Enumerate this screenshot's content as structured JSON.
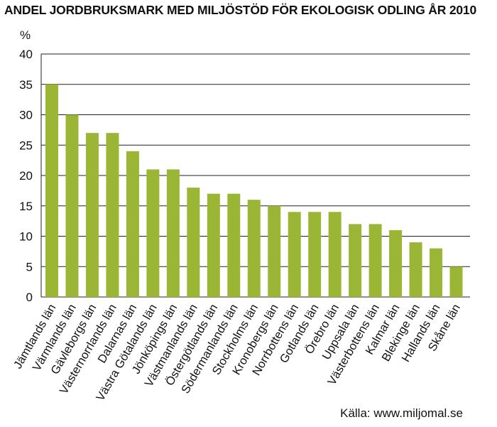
{
  "chart_data": {
    "type": "bar",
    "title": "ANDEL JORDBRUKSMARK MED MILJÖSTÖD FÖR EKOLOGISK ODLING ÅR 2010",
    "ylabel": "%",
    "xlabel": "",
    "ylim": [
      0,
      40
    ],
    "yticks": [
      "0",
      "5",
      "10",
      "15",
      "20",
      "25",
      "30",
      "35",
      "40"
    ],
    "grid": true,
    "bar_color": "#9bb634",
    "categories": [
      "Jämtlands län",
      "Värmlands län",
      "Gävleborgs län",
      "Västernorrlands län",
      "Dalarnas län",
      "Västra Götalands län",
      "Jönköpings län",
      "Västmanlands län",
      "Östergötlands län",
      "Södermanlands län",
      "Stockholms län",
      "Kronobergs län",
      "Norrbottens län",
      "Gotlands län",
      "Örebro län",
      "Uppsala län",
      "Västerbottens län",
      "Kalmar län",
      "Blekinge län",
      "Hallands län",
      "Skåne län"
    ],
    "values": [
      35,
      30,
      27,
      27,
      24,
      21,
      21,
      18,
      17,
      17,
      16,
      15,
      14,
      14,
      14,
      12,
      12,
      11,
      9,
      8,
      5
    ],
    "source": "Källa: www.miljomal.se"
  }
}
